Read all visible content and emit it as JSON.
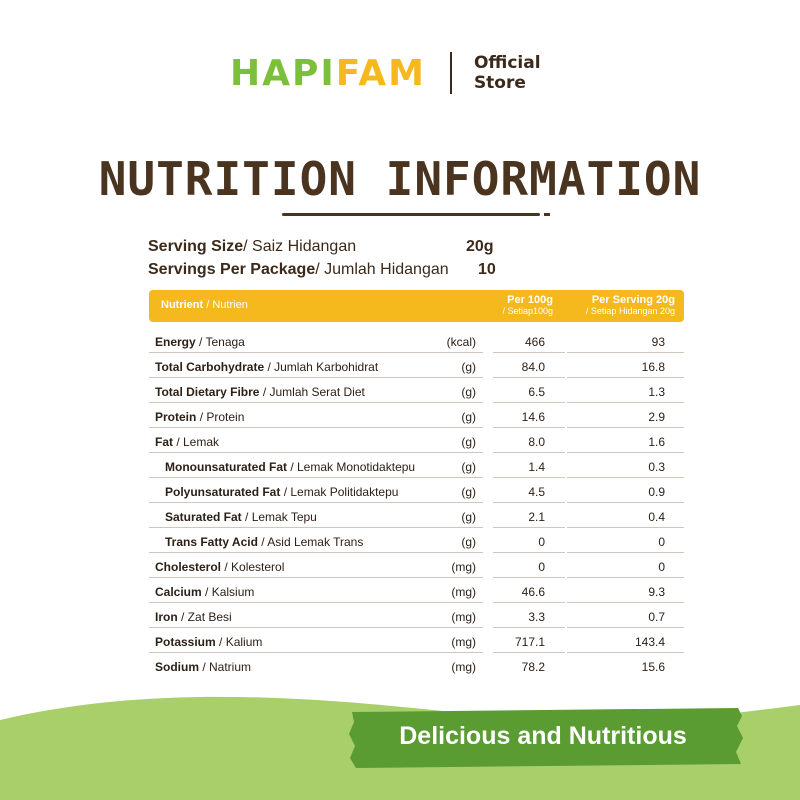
{
  "logo": {
    "part1": "HAPI",
    "part2": "FAM",
    "store_line1": "Official",
    "store_line2": "Store"
  },
  "title": "NUTRITION INFORMATION",
  "serving": {
    "size_label": "Serving Size",
    "size_label_alt": "/ Saiz Hidangan",
    "size_value": "20g",
    "per_package_label": "Servings Per Package",
    "per_package_label_alt": "/ Jumlah Hidangan",
    "per_package_value": "10"
  },
  "table": {
    "header": {
      "nutrient": "Nutrient",
      "nutrient_alt": "/ Nutrien",
      "col1": "Per 100g",
      "col1_alt": "/ Setiap100g",
      "col2": "Per Serving 20g",
      "col2_alt": "/ Setiap Hidangan 20g"
    },
    "rows": [
      {
        "name": "Energy",
        "alt": "/ Tenaga",
        "unit": "(kcal)",
        "per100": "466",
        "perServing": "93"
      },
      {
        "name": "Total Carbohydrate",
        "alt": "/ Jumlah Karbohidrat",
        "unit": "(g)",
        "per100": "84.0",
        "perServing": "16.8"
      },
      {
        "name": "Total Dietary Fibre",
        "alt": "/ Jumlah Serat Diet",
        "unit": "(g)",
        "per100": "6.5",
        "perServing": "1.3"
      },
      {
        "name": "Protein",
        "alt": "/ Protein",
        "unit": "(g)",
        "per100": "14.6",
        "perServing": "2.9"
      },
      {
        "name": "Fat",
        "alt": "/ Lemak",
        "unit": "(g)",
        "per100": "8.0",
        "perServing": "1.6"
      },
      {
        "name": "Monounsaturated Fat",
        "alt": "/ Lemak Monotidaktepu",
        "unit": "(g)",
        "per100": "1.4",
        "perServing": "0.3"
      },
      {
        "name": "Polyunsaturated Fat",
        "alt": "/ Lemak Politidaktepu",
        "unit": "(g)",
        "per100": "4.5",
        "perServing": "0.9"
      },
      {
        "name": "Saturated Fat",
        "alt": "/ Lemak Tepu",
        "unit": "(g)",
        "per100": "2.1",
        "perServing": "0.4"
      },
      {
        "name": "Trans Fatty Acid",
        "alt": "/ Asid Lemak Trans",
        "unit": "(g)",
        "per100": "0",
        "perServing": "0"
      },
      {
        "name": "Cholesterol",
        "alt": "/ Kolesterol",
        "unit": "(mg)",
        "per100": "0",
        "perServing": "0"
      },
      {
        "name": "Calcium",
        "alt": "/ Kalsium",
        "unit": "(mg)",
        "per100": "46.6",
        "perServing": "9.3"
      },
      {
        "name": "Iron",
        "alt": "/ Zat Besi",
        "unit": "(mg)",
        "per100": "3.3",
        "perServing": "0.7"
      },
      {
        "name": "Potassium",
        "alt": "/ Kalium",
        "unit": "(mg)",
        "per100": "717.1",
        "perServing": "143.4"
      },
      {
        "name": "Sodium",
        "alt": "/ Natrium",
        "unit": "(mg)",
        "per100": "78.2",
        "perServing": "15.6"
      }
    ]
  },
  "banner": {
    "text": "Delicious and Nutritious"
  },
  "colors": {
    "green": "#7bbf3a",
    "yellow": "#f5b91d",
    "brown": "#4a3420",
    "banner_green": "#5a9b32",
    "hill_green": "#a8cf6a"
  }
}
